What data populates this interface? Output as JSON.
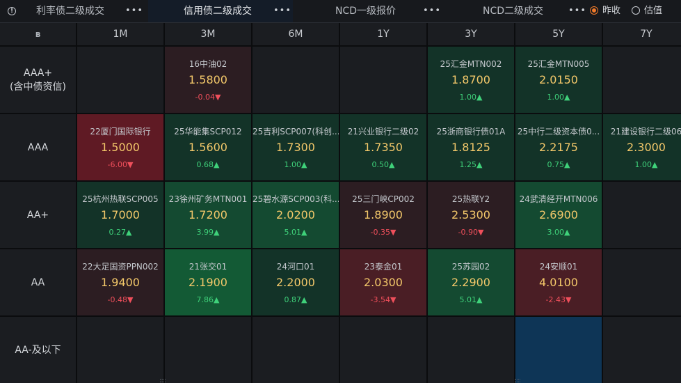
{
  "tabs": [
    {
      "label": "利率债二级成交",
      "more": "•••"
    },
    {
      "label": "信用债二级成交",
      "more": "•••"
    },
    {
      "label": "NCD一级报价",
      "more": "•••"
    },
    {
      "label": "NCD二级成交",
      "more": "•••"
    }
  ],
  "radio": [
    {
      "label": "昨收",
      "selected": true
    },
    {
      "label": "估值",
      "selected": false
    }
  ],
  "table": {
    "corner_icon": "ʙ",
    "columns": [
      "1M",
      "3M",
      "6M",
      "1Y",
      "3Y",
      "5Y",
      "7Y"
    ],
    "rows": [
      {
        "label_line1": "AAA+",
        "label_line2": "(含中债资信)",
        "cells": [
          null,
          {
            "name": "16中油02",
            "yield": "1.5800",
            "chg": "-0.04▼",
            "dir": "dn",
            "tone": "dn1"
          },
          null,
          null,
          {
            "name": "25汇金MTN002",
            "yield": "1.8700",
            "chg": "1.00▲",
            "dir": "up",
            "tone": "up1"
          },
          {
            "name": "25汇金MTN005",
            "yield": "2.0150",
            "chg": "1.00▲",
            "dir": "up",
            "tone": "up1"
          },
          null
        ]
      },
      {
        "label_line1": "AAA",
        "label_line2": "",
        "cells": [
          {
            "name": "22厦门国际银行",
            "yield": "1.5000",
            "chg": "-6.00▼",
            "dir": "dn",
            "tone": "dn3"
          },
          {
            "name": "25华能集SCP012",
            "yield": "1.5600",
            "chg": "0.68▲",
            "dir": "up",
            "tone": "up1"
          },
          {
            "name": "25吉利SCP007(科创...",
            "yield": "1.7300",
            "chg": "1.00▲",
            "dir": "up",
            "tone": "up1"
          },
          {
            "name": "21兴业银行二级02",
            "yield": "1.7350",
            "chg": "0.50▲",
            "dir": "up",
            "tone": "up1"
          },
          {
            "name": "25浙商银行债01A",
            "yield": "1.8125",
            "chg": "1.25▲",
            "dir": "up",
            "tone": "up1"
          },
          {
            "name": "25中行二级资本债0...",
            "yield": "2.2175",
            "chg": "0.75▲",
            "dir": "up",
            "tone": "up1"
          },
          {
            "name": "21建设银行二级06",
            "yield": "2.3000",
            "chg": "1.00▲",
            "dir": "up",
            "tone": "up1"
          }
        ]
      },
      {
        "label_line1": "AA+",
        "label_line2": "",
        "cells": [
          {
            "name": "25杭州热联SCP005",
            "yield": "1.7000",
            "chg": "0.27▲",
            "dir": "up",
            "tone": "up1"
          },
          {
            "name": "23徐州矿务MTN001",
            "yield": "1.7200",
            "chg": "3.99▲",
            "dir": "up",
            "tone": "up2"
          },
          {
            "name": "25碧水源SCP003(科...",
            "yield": "2.0200",
            "chg": "5.01▲",
            "dir": "up",
            "tone": "up2"
          },
          {
            "name": "25三门峡CP002",
            "yield": "1.8900",
            "chg": "-0.35▼",
            "dir": "dn",
            "tone": "dn1"
          },
          {
            "name": "25热联Y2",
            "yield": "2.5300",
            "chg": "-0.90▼",
            "dir": "dn",
            "tone": "dn1"
          },
          {
            "name": "24武清经开MTN006",
            "yield": "2.6900",
            "chg": "3.00▲",
            "dir": "up",
            "tone": "up2"
          },
          null
        ]
      },
      {
        "label_line1": "AA",
        "label_line2": "",
        "cells": [
          {
            "name": "22大足国资PPN002",
            "yield": "1.9400",
            "chg": "-0.48▼",
            "dir": "dn",
            "tone": "dn1"
          },
          {
            "name": "21张交01",
            "yield": "2.1900",
            "chg": "7.86▲",
            "dir": "up",
            "tone": "up3"
          },
          {
            "name": "24河口01",
            "yield": "2.2000",
            "chg": "0.87▲",
            "dir": "up",
            "tone": "up1"
          },
          {
            "name": "23泰金01",
            "yield": "2.0300",
            "chg": "-3.54▼",
            "dir": "dn",
            "tone": "dn2"
          },
          {
            "name": "25苏园02",
            "yield": "2.2900",
            "chg": "5.01▲",
            "dir": "up",
            "tone": "up2"
          },
          {
            "name": "24安顺01",
            "yield": "4.0100",
            "chg": "-2.43▼",
            "dir": "dn",
            "tone": "dn2"
          },
          null
        ]
      },
      {
        "label_line1": "AA-及以下",
        "label_line2": "",
        "cells": [
          null,
          null,
          null,
          null,
          null,
          {
            "name": "",
            "yield": "",
            "chg": "",
            "dir": "",
            "tone": "blue"
          },
          null
        ]
      }
    ]
  }
}
